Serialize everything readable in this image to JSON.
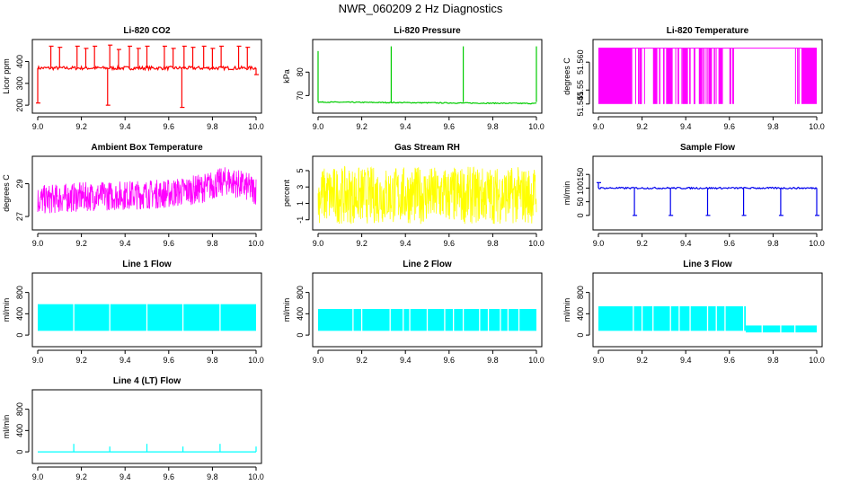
{
  "figure_title": "NWR_060209  2 Hz Diagnostics",
  "chart_data": [
    {
      "id": "co2",
      "type": "line",
      "title": "Li-820 CO2",
      "ylabel": "Licor ppm",
      "color": "#ff0000",
      "xlim": [
        9.0,
        10.0
      ],
      "ylim": [
        180,
        480
      ],
      "yticks": [
        200,
        300,
        400
      ],
      "xticks": [
        9.0,
        9.2,
        9.4,
        9.6,
        9.8,
        10.0
      ],
      "baseline": 370,
      "noise": 8,
      "spikes": [
        {
          "x": 9.0,
          "y": 210
        },
        {
          "x": 9.06,
          "y": 470
        },
        {
          "x": 9.1,
          "y": 465
        },
        {
          "x": 9.18,
          "y": 470
        },
        {
          "x": 9.22,
          "y": 460
        },
        {
          "x": 9.26,
          "y": 470
        },
        {
          "x": 9.32,
          "y": 200
        },
        {
          "x": 9.33,
          "y": 475
        },
        {
          "x": 9.37,
          "y": 455
        },
        {
          "x": 9.42,
          "y": 470
        },
        {
          "x": 9.46,
          "y": 460
        },
        {
          "x": 9.5,
          "y": 470
        },
        {
          "x": 9.58,
          "y": 470
        },
        {
          "x": 9.62,
          "y": 460
        },
        {
          "x": 9.66,
          "y": 190
        },
        {
          "x": 9.67,
          "y": 470
        },
        {
          "x": 9.71,
          "y": 465
        },
        {
          "x": 9.76,
          "y": 470
        },
        {
          "x": 9.8,
          "y": 460
        },
        {
          "x": 9.84,
          "y": 470
        },
        {
          "x": 9.92,
          "y": 470
        },
        {
          "x": 9.96,
          "y": 465
        },
        {
          "x": 10.0,
          "y": 340
        }
      ]
    },
    {
      "id": "pressure",
      "type": "line",
      "title": "Li-820 Pressure",
      "ylabel": "kPa",
      "color": "#00cc00",
      "xlim": [
        9.0,
        10.0
      ],
      "ylim": [
        64,
        92
      ],
      "yticks": [
        70,
        80
      ],
      "xticks": [
        9.0,
        9.2,
        9.4,
        9.6,
        9.8,
        10.0
      ],
      "baseline_start": 67.2,
      "baseline_end": 66.6,
      "noise": 0.2,
      "spikes": [
        {
          "x": 9.0,
          "y": 89
        },
        {
          "x": 9.335,
          "y": 91
        },
        {
          "x": 9.665,
          "y": 91
        },
        {
          "x": 10.0,
          "y": 91
        }
      ]
    },
    {
      "id": "temperature",
      "type": "bands",
      "title": "Li-820 Temperature",
      "ylabel": "degrees C",
      "color": "#ff00ff",
      "xlim": [
        9.0,
        10.0
      ],
      "ylim": [
        51.543,
        51.5665
      ],
      "yticks": [
        51.545,
        51.55,
        51.56
      ],
      "yticklabels": [
        "51.545",
        "51.55",
        "51.560"
      ],
      "xticks": [
        9.0,
        9.2,
        9.4,
        9.6,
        9.8,
        10.0
      ],
      "low": 51.545,
      "high": 51.565,
      "solid": [
        [
          9.0,
          9.155
        ],
        [
          9.25,
          9.27
        ],
        [
          9.31,
          9.34
        ],
        [
          9.385,
          9.41
        ],
        [
          9.46,
          9.475
        ],
        [
          9.505,
          9.52
        ],
        [
          9.55,
          9.57
        ],
        [
          9.93,
          10.0
        ]
      ],
      "dense": [
        [
          9.155,
          9.23
        ],
        [
          9.27,
          9.31
        ],
        [
          9.34,
          9.385
        ],
        [
          9.41,
          9.46
        ],
        [
          9.475,
          9.505
        ],
        [
          9.52,
          9.55
        ],
        [
          9.6,
          9.64
        ],
        [
          9.9,
          9.93
        ]
      ]
    },
    {
      "id": "box_temp",
      "type": "noise",
      "title": "Ambient Box Temperature",
      "ylabel": "degrees C",
      "color": "#ff00ff",
      "xlim": [
        9.0,
        10.0
      ],
      "ylim": [
        26.4,
        30.4
      ],
      "yticks": [
        27,
        29
      ],
      "xticks": [
        9.0,
        9.2,
        9.4,
        9.6,
        9.8,
        10.0
      ],
      "trend": [
        [
          9.0,
          28.0
        ],
        [
          9.2,
          28.2
        ],
        [
          9.4,
          28.3
        ],
        [
          9.6,
          28.4
        ],
        [
          9.75,
          28.7
        ],
        [
          9.87,
          29.2
        ],
        [
          10.0,
          28.6
        ]
      ],
      "amp": 0.9
    },
    {
      "id": "rh",
      "type": "noise",
      "title": "Gas Stream RH",
      "ylabel": "percent",
      "color": "#ffff00",
      "xlim": [
        9.0,
        10.0
      ],
      "ylim": [
        -1.8,
        6.2
      ],
      "yticks": [
        -1,
        1,
        3,
        5
      ],
      "xticks": [
        9.0,
        9.2,
        9.4,
        9.6,
        9.8,
        10.0
      ],
      "trend": [
        [
          9.0,
          2.0
        ],
        [
          10.0,
          2.0
        ]
      ],
      "amp": 3.5
    },
    {
      "id": "sample_flow",
      "type": "line",
      "title": "Sample Flow",
      "ylabel": "ml/min",
      "color": "#0000ee",
      "xlim": [
        9.0,
        10.0
      ],
      "ylim": [
        -40,
        200
      ],
      "yticks": [
        0,
        50,
        100,
        150
      ],
      "xticks": [
        9.0,
        9.2,
        9.4,
        9.6,
        9.8,
        10.0
      ],
      "baseline": 100,
      "noise": 3,
      "spikes": [
        {
          "x": 9.0,
          "y": 120
        },
        {
          "x": 9.165,
          "y": 0
        },
        {
          "x": 9.33,
          "y": 0
        },
        {
          "x": 9.5,
          "y": 0
        },
        {
          "x": 9.665,
          "y": 0
        },
        {
          "x": 9.835,
          "y": 0
        },
        {
          "x": 10.0,
          "y": 0
        }
      ]
    },
    {
      "id": "line1",
      "type": "flow",
      "title": "Line 1 Flow",
      "ylabel": "ml/min",
      "color": "#00ffff",
      "xlim": [
        9.0,
        10.0
      ],
      "ylim": [
        -150,
        1080
      ],
      "yticks": [
        0,
        400,
        800
      ],
      "xticks": [
        9.0,
        9.2,
        9.4,
        9.6,
        9.8,
        10.0
      ],
      "segments": [
        {
          "x0": 9.0,
          "x1": 10.0,
          "low": 80,
          "high": 580
        }
      ],
      "gaps": [
        9.165,
        9.33,
        9.5,
        9.665,
        9.835
      ]
    },
    {
      "id": "line2",
      "type": "flow",
      "title": "Line 2 Flow",
      "ylabel": "ml/min",
      "color": "#00ffff",
      "xlim": [
        9.0,
        10.0
      ],
      "ylim": [
        -150,
        1080
      ],
      "yticks": [
        0,
        400,
        800
      ],
      "xticks": [
        9.0,
        9.2,
        9.4,
        9.6,
        9.8,
        10.0
      ],
      "segments": [
        {
          "x0": 9.0,
          "x1": 10.0,
          "low": 80,
          "high": 490
        }
      ],
      "gaps": [
        9.16,
        9.2,
        9.33,
        9.39,
        9.42,
        9.5,
        9.58,
        9.62,
        9.665,
        9.74,
        9.78,
        9.835,
        9.87,
        9.92
      ]
    },
    {
      "id": "line3",
      "type": "flow",
      "title": "Line 3 Flow",
      "ylabel": "ml/min",
      "color": "#00ffff",
      "xlim": [
        9.0,
        10.0
      ],
      "ylim": [
        -150,
        1080
      ],
      "yticks": [
        0,
        400,
        800
      ],
      "xticks": [
        9.0,
        9.2,
        9.4,
        9.6,
        9.8,
        10.0
      ],
      "segments": [
        {
          "x0": 9.0,
          "x1": 9.675,
          "low": 80,
          "high": 540
        },
        {
          "x0": 9.675,
          "x1": 10.0,
          "low": 50,
          "high": 180
        }
      ],
      "gaps": [
        9.16,
        9.2,
        9.25,
        9.33,
        9.37,
        9.42,
        9.5,
        9.54,
        9.58,
        9.665,
        9.75,
        9.835,
        9.9
      ]
    },
    {
      "id": "line4",
      "type": "line",
      "title": "Line 4 (LT) Flow",
      "ylabel": "ml/min",
      "color": "#00ffff",
      "xlim": [
        9.0,
        10.0
      ],
      "ylim": [
        -150,
        1080
      ],
      "yticks": [
        0,
        400,
        800
      ],
      "xticks": [
        9.0,
        9.2,
        9.4,
        9.6,
        9.8,
        10.0
      ],
      "baseline": 0,
      "noise": 0,
      "spikes": [
        {
          "x": 9.165,
          "y": 150
        },
        {
          "x": 9.33,
          "y": 100
        },
        {
          "x": 9.5,
          "y": 150
        },
        {
          "x": 9.665,
          "y": 100
        },
        {
          "x": 9.835,
          "y": 150
        },
        {
          "x": 10.0,
          "y": 100
        }
      ]
    }
  ]
}
